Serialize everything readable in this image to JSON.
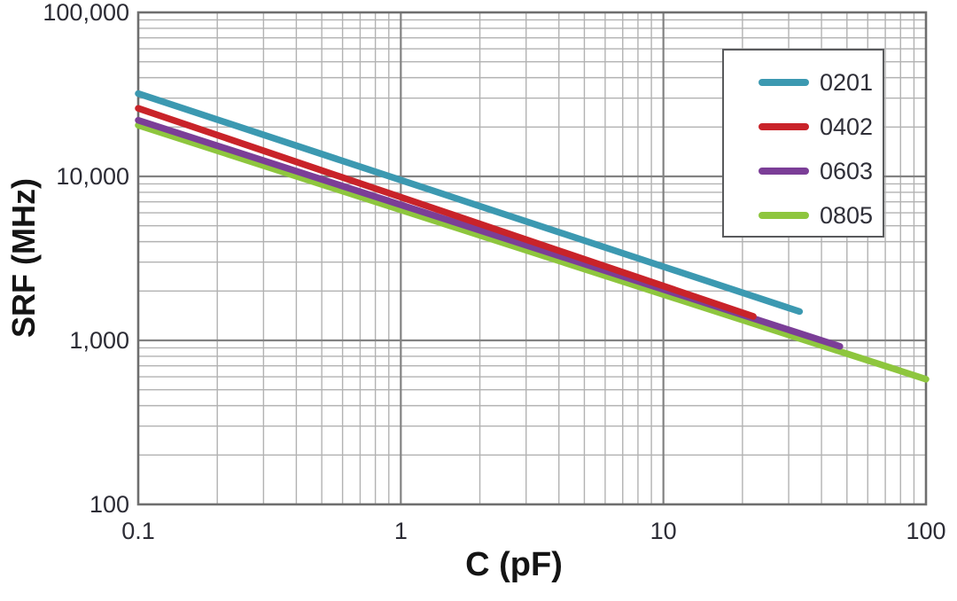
{
  "chart_data": {
    "type": "line",
    "title": "",
    "xlabel": "C (pF)",
    "ylabel": "SRF (MHz)",
    "x_scale": "log",
    "y_scale": "log",
    "xlim": [
      0.1,
      100
    ],
    "ylim": [
      100,
      100000
    ],
    "x_ticks": [
      {
        "value": 0.1,
        "label": "0.1"
      },
      {
        "value": 1,
        "label": "1"
      },
      {
        "value": 10,
        "label": "10"
      },
      {
        "value": 100,
        "label": "100"
      }
    ],
    "y_ticks": [
      {
        "value": 100,
        "label": "100"
      },
      {
        "value": 1000,
        "label": "1,000"
      },
      {
        "value": 10000,
        "label": "10,000"
      },
      {
        "value": 100000,
        "label": "100,000"
      }
    ],
    "grid": {
      "show_minor": true,
      "minor_color": "#b2b2b2",
      "major_color": "#828282",
      "frame_color": "#6e6e6e"
    },
    "legend": {
      "position": "top-right",
      "entries": [
        "0201",
        "0402",
        "0603",
        "0805"
      ]
    },
    "series": [
      {
        "name": "0201",
        "color": "#3c99b1",
        "points": [
          [
            0.1,
            32000
          ],
          [
            33,
            1500
          ]
        ]
      },
      {
        "name": "0402",
        "color": "#c92329",
        "points": [
          [
            0.1,
            26000
          ],
          [
            22,
            1400
          ]
        ]
      },
      {
        "name": "0603",
        "color": "#7b3e97",
        "points": [
          [
            0.1,
            22000
          ],
          [
            47,
            920
          ]
        ]
      },
      {
        "name": "0805",
        "color": "#8ec63e",
        "points": [
          [
            0.1,
            20500
          ],
          [
            100,
            580
          ]
        ]
      }
    ]
  }
}
